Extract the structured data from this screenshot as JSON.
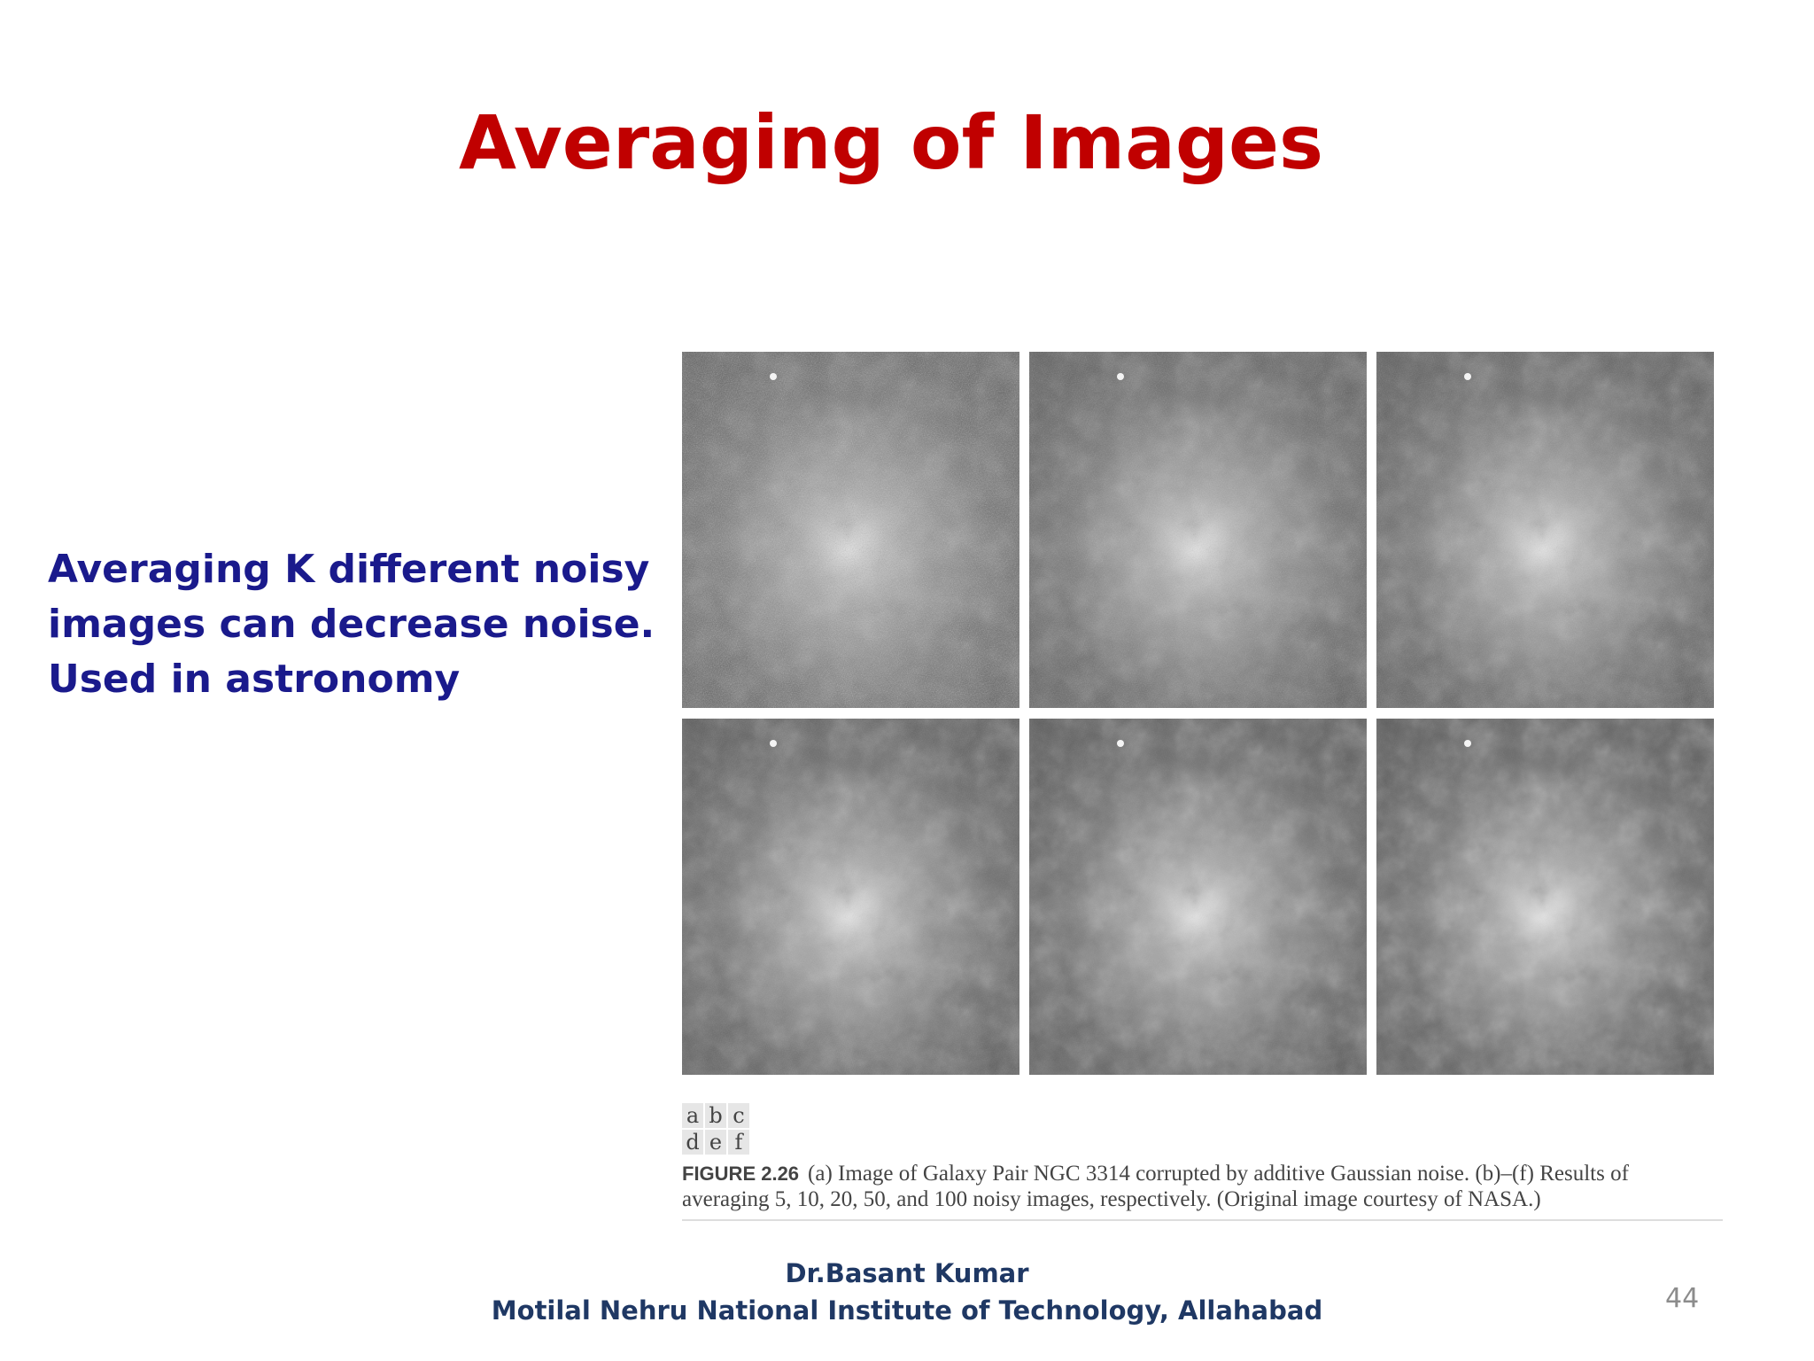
{
  "slide": {
    "title": "Averaging of Images",
    "body": [
      "Averaging K different noisy",
      "images can decrease noise.",
      "Used in astronomy"
    ],
    "figure": {
      "panel_key": [
        [
          "a",
          "b",
          "c"
        ],
        [
          "d",
          "e",
          "f"
        ]
      ],
      "caption_label": "FIGURE 2.26",
      "caption_lines": [
        "(a) Image of Galaxy Pair NGC 3314 corrupted by additive Gaussian noise. (b)–(f) Results of",
        "averaging 5, 10, 20, 50, and 100 noisy images, respectively. (Original image courtesy of NASA.)"
      ]
    },
    "footer": [
      "Dr.Basant Kumar",
      "Motilal Nehru National Institute of Technology, Allahabad"
    ],
    "page_number": "44"
  }
}
